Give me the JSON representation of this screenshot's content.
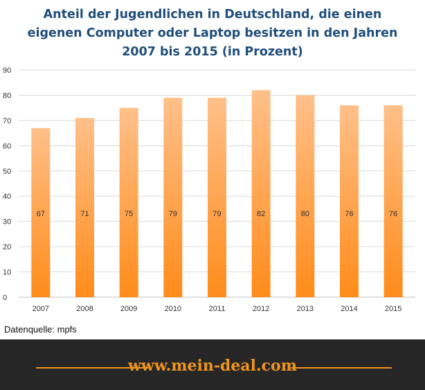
{
  "chart_data": {
    "type": "bar",
    "title_lines": [
      "Anteil der Jugendlichen in Deutschland,  die einen",
      "eigenen Computer oder Laptop besitzen in den Jahren",
      "2007 bis 2015 (in Prozent)"
    ],
    "categories": [
      "2007",
      "2008",
      "2009",
      "2010",
      "2011",
      "2012",
      "2013",
      "2014",
      "2015"
    ],
    "values": [
      67,
      71,
      75,
      79,
      79,
      82,
      80,
      76,
      76
    ],
    "ylim": [
      0,
      90
    ],
    "yticks": [
      0,
      10,
      20,
      30,
      40,
      50,
      60,
      70,
      80,
      90
    ],
    "grid": true,
    "bar_color_top": "#ffc08a",
    "bar_color_bottom": "#ff8c1a"
  },
  "source_text": "Datenquelle: mpfs",
  "footer": {
    "site": "www.mein-deal.com",
    "accent_color": "#f0941f"
  }
}
